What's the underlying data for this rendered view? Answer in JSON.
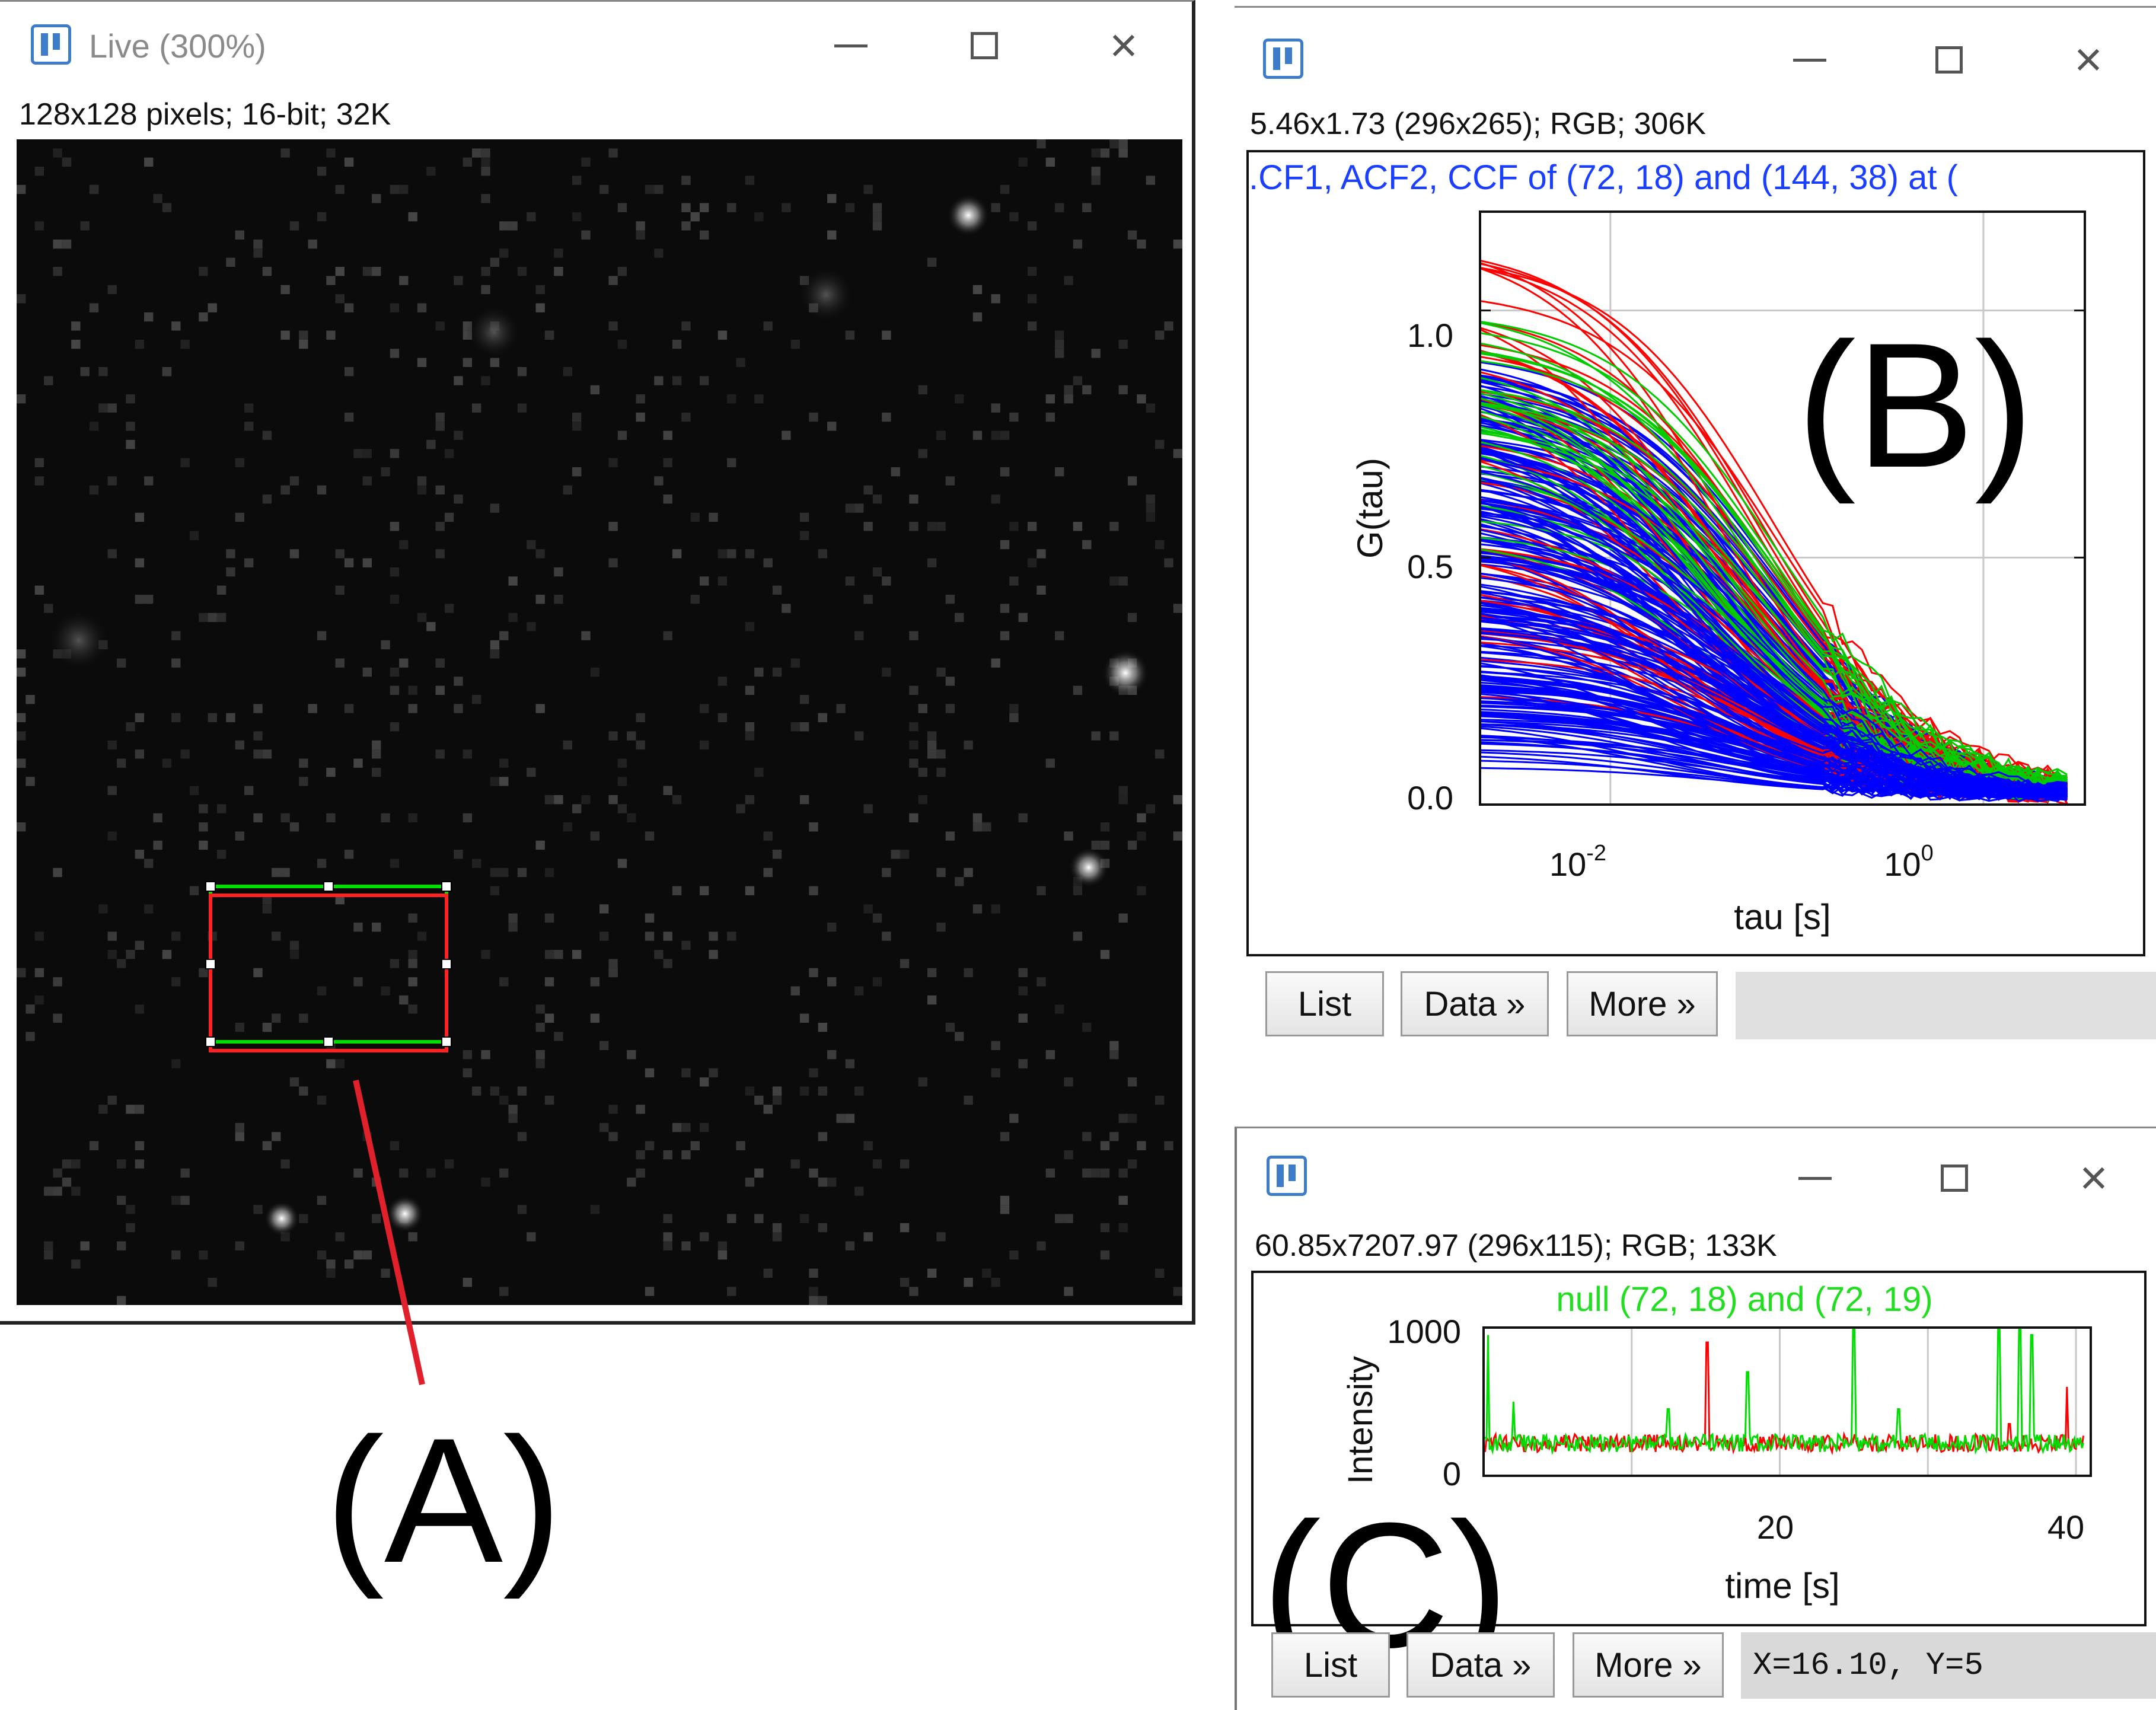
{
  "window_a": {
    "title": "Live (300%)",
    "info": "128x128 pixels; 16-bit; 32K",
    "label": "(A)"
  },
  "window_b": {
    "info": "5.46x1.73   (296x265); RGB; 306K",
    "label": "(B)",
    "buttons": {
      "list": "List",
      "data": "Data »",
      "more": "More »"
    }
  },
  "window_c": {
    "info": "60.85x7207.97   (296x115); RGB; 133K",
    "label": "(C)",
    "buttons": {
      "list": "List",
      "data": "Data »",
      "more": "More »"
    },
    "status": "X=16.10, Y=5"
  },
  "colors": {
    "acf1": "#ff0000",
    "acf2": "#00cc00",
    "ccf": "#0000ff",
    "roi1": "#00dd00",
    "roi2": "#ff2222",
    "pointer": "#e0202a"
  },
  "chart_data": [
    {
      "type": "line",
      "title": ".CF1, ACF2, CCF of (72, 18) and (144, 38) at (",
      "xlabel": "tau [s]",
      "ylabel": "G(tau)",
      "xscale": "log",
      "xlim": [
        0.002,
        3.5
      ],
      "ylim": [
        0.0,
        1.2
      ],
      "xticks": [
        "10^-2",
        "10^0"
      ],
      "yticks": [
        "0.0",
        "0.5",
        "1.0"
      ],
      "grid": true,
      "series": [
        {
          "color": "#ff0000",
          "x": [
            0.003,
            0.01,
            0.03,
            0.1,
            0.3,
            1,
            2.5
          ],
          "y": [
            1.15,
            0.98,
            0.62,
            0.2,
            0.08,
            0.06,
            0.07
          ]
        },
        {
          "color": "#00cc00",
          "x": [
            0.003,
            0.01,
            0.03,
            0.1,
            0.3,
            1,
            2.5
          ],
          "y": [
            1.02,
            0.9,
            0.58,
            0.22,
            0.1,
            0.07,
            0.07
          ]
        },
        {
          "color": "#0000ff",
          "x": [
            0.003,
            0.01,
            0.03,
            0.1,
            0.3,
            1,
            2.5
          ],
          "y": [
            0.85,
            0.7,
            0.45,
            0.15,
            0.06,
            0.03,
            0.03
          ]
        }
      ]
    },
    {
      "type": "line",
      "title": "null (72, 18) and (72, 19)",
      "xlabel": "time [s]",
      "ylabel": "Intensity",
      "xlim": [
        0,
        41
      ],
      "ylim": [
        0,
        1000
      ],
      "xticks": [
        "20",
        "40"
      ],
      "yticks": [
        "0",
        "1000"
      ],
      "grid": true,
      "series": [
        {
          "color": "#00dd00",
          "x": [
            0,
            10,
            15,
            20,
            25,
            30,
            35,
            37,
            41
          ],
          "y": [
            250,
            220,
            240,
            210,
            260,
            230,
            240,
            900,
            230
          ]
        },
        {
          "color": "#ff0000",
          "x": [
            0,
            10,
            15,
            20,
            25,
            30,
            35,
            40
          ],
          "y": [
            200,
            180,
            900,
            190,
            200,
            210,
            190,
            200
          ]
        }
      ]
    }
  ]
}
